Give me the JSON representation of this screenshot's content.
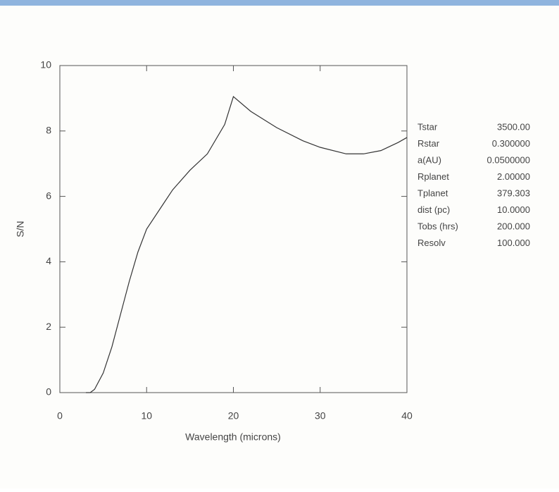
{
  "chart_data": {
    "type": "line",
    "xlabel": "Wavelength (microns)",
    "ylabel": "S/N",
    "x": [
      3,
      3.5,
      4,
      5,
      6,
      7,
      8,
      9,
      10,
      12,
      13,
      15,
      17,
      19,
      20,
      22,
      25,
      28,
      30,
      33,
      35,
      37,
      39,
      40
    ],
    "values": [
      0,
      0,
      0.1,
      0.6,
      1.4,
      2.4,
      3.4,
      4.3,
      5.0,
      5.8,
      6.2,
      6.8,
      7.3,
      8.2,
      9.05,
      8.6,
      8.1,
      7.7,
      7.5,
      7.3,
      7.3,
      7.4,
      7.65,
      7.8
    ],
    "color": "#333333",
    "xlim": [
      0,
      40
    ],
    "xticks": [
      0,
      10,
      20,
      30,
      40
    ],
    "ylim": [
      0,
      10
    ],
    "yticks": [
      0,
      2,
      4,
      6,
      8,
      10
    ],
    "parameters": [
      {
        "label": "Tstar",
        "value": "3500.00"
      },
      {
        "label": "Rstar",
        "value": "0.300000"
      },
      {
        "label": "a(AU)",
        "value": "0.0500000"
      },
      {
        "label": "Rplanet",
        "value": "2.00000"
      },
      {
        "label": "Tplanet",
        "value": "379.303"
      },
      {
        "label": "dist (pc)",
        "value": "10.0000"
      },
      {
        "label": "Tobs (hrs)",
        "value": "200.000"
      },
      {
        "label": "Resolv",
        "value": "100.000"
      }
    ]
  }
}
